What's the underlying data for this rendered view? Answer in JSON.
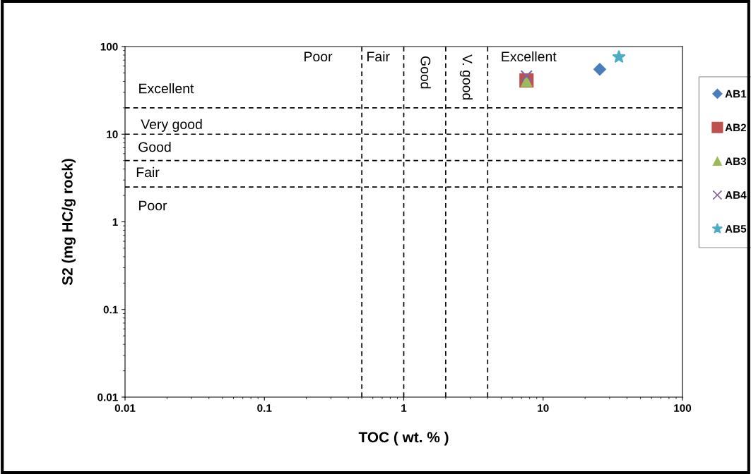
{
  "chart_data": {
    "type": "scatter",
    "xlabel": "TOC ( wt. % )",
    "ylabel": "S2 (mg HC/g rock)",
    "log": "xy",
    "xlim": [
      0.01,
      100
    ],
    "ylim": [
      0.01,
      100
    ],
    "xticks": [
      0.01,
      0.1,
      1,
      10,
      100
    ],
    "yticks": [
      0.01,
      0.1,
      1,
      10,
      100
    ],
    "grid": false,
    "legend": "right",
    "series": [
      {
        "name": "AB1",
        "color": "#4a7ebb",
        "marker": "diamond",
        "x": [
          25.5
        ],
        "values": [
          55
        ]
      },
      {
        "name": "AB2",
        "color": "#c0504d",
        "marker": "square",
        "x": [
          7.6
        ],
        "values": [
          41
        ]
      },
      {
        "name": "AB3",
        "color": "#9bbb59",
        "marker": "triangle",
        "x": [
          7.6
        ],
        "values": [
          40
        ]
      },
      {
        "name": "AB4",
        "color": "#8064a2",
        "marker": "cross",
        "x": [
          7.6
        ],
        "values": [
          46
        ]
      },
      {
        "name": "AB5",
        "color": "#4bacc6",
        "marker": "star",
        "x": [
          35
        ],
        "values": [
          76
        ]
      }
    ],
    "ref_lines": [
      {
        "axis": "x",
        "value": 0.5,
        "color": "#000000",
        "line_style": "dashed"
      },
      {
        "axis": "x",
        "value": 1,
        "color": "#000000",
        "line_style": "dashed"
      },
      {
        "axis": "x",
        "value": 2,
        "color": "#000000",
        "line_style": "dashed"
      },
      {
        "axis": "x",
        "value": 4,
        "color": "#000000",
        "line_style": "dashed"
      },
      {
        "axis": "y",
        "value": 20,
        "color": "#000000",
        "line_style": "dashed"
      },
      {
        "axis": "y",
        "value": 10,
        "color": "#000000",
        "line_style": "dashed"
      },
      {
        "axis": "y",
        "value": 5,
        "color": "#000000",
        "line_style": "dashed"
      },
      {
        "axis": "y",
        "value": 2.5,
        "color": "#000000",
        "line_style": "dashed"
      }
    ],
    "annotations": [
      "Poor",
      "Fair",
      "Good",
      "V. good",
      "Excellent",
      "Excellent",
      "Very good",
      "Good",
      "Fair",
      "Poor"
    ]
  }
}
